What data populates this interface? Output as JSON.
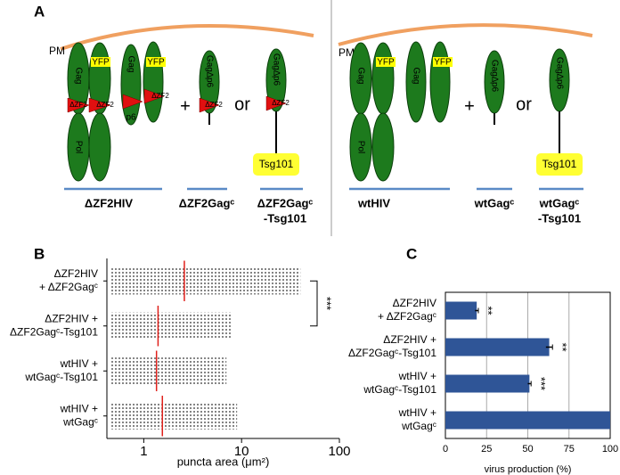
{
  "figure": {
    "panel_labels": [
      "A",
      "B",
      "C"
    ],
    "diagram": {
      "membrane": "PM",
      "gag": "Gag",
      "pol": "Pol",
      "yfp": "YFP",
      "zf2": "ΔZF2",
      "p6": "p6",
      "gag_dp6": "Gag∆p6",
      "plus": "+",
      "or": "or",
      "tsg101": "Tsg101",
      "left_captions": [
        "ΔZF2HIV",
        "ΔZF2Gagᶜ",
        "ΔZF2Gagᶜ",
        "-Tsg101"
      ],
      "right_captions": [
        "wtHIV",
        "wtGagᶜ",
        "wtGagᶜ",
        "-Tsg101"
      ]
    }
  },
  "chart_data": [
    {
      "type": "dot",
      "categories": [
        [
          "ΔZF2HIV",
          "+ ΔZF2Gagᶜ"
        ],
        [
          "ΔZF2HIV +",
          "ΔZF2Gagᶜ-Tsg101"
        ],
        [
          "wtHIV +",
          "wtGagᶜ-Tsg101"
        ],
        [
          "wtHIV +",
          "wtGagᶜ"
        ]
      ],
      "x_label": "puncta area (μm²)",
      "xscale": "log",
      "xlim": [
        0.42,
        100
      ],
      "xticks": [
        1,
        10,
        100
      ],
      "medians": [
        2.6,
        1.4,
        1.35,
        1.55
      ],
      "ranges": [
        [
          0.45,
          40
        ],
        [
          0.45,
          8
        ],
        [
          0.45,
          7
        ],
        [
          0.45,
          9
        ]
      ],
      "median_color": "#e0201b",
      "dot_color": "#333333",
      "significance": "***",
      "bracket_rows": [
        0,
        1
      ]
    },
    {
      "type": "hbar",
      "categories": [
        [
          "ΔZF2HIV",
          "+ ΔZF2Gagᶜ"
        ],
        [
          "ΔZF2HIV +",
          "ΔZF2Gagᶜ-Tsg101"
        ],
        [
          "wtHIV +",
          "wtGagᶜ-Tsg101"
        ],
        [
          "wtHIV +",
          "wtGagᶜ"
        ]
      ],
      "values": [
        19,
        63,
        51,
        100
      ],
      "errors": [
        1,
        2,
        1,
        null
      ],
      "annotations": [
        "**",
        "**",
        "***",
        null
      ],
      "x_label": "virus production (%)",
      "xlim": [
        0,
        100
      ],
      "xticks": [
        0,
        25,
        50,
        75,
        100
      ],
      "grid": true,
      "color": "#2f5597"
    }
  ]
}
